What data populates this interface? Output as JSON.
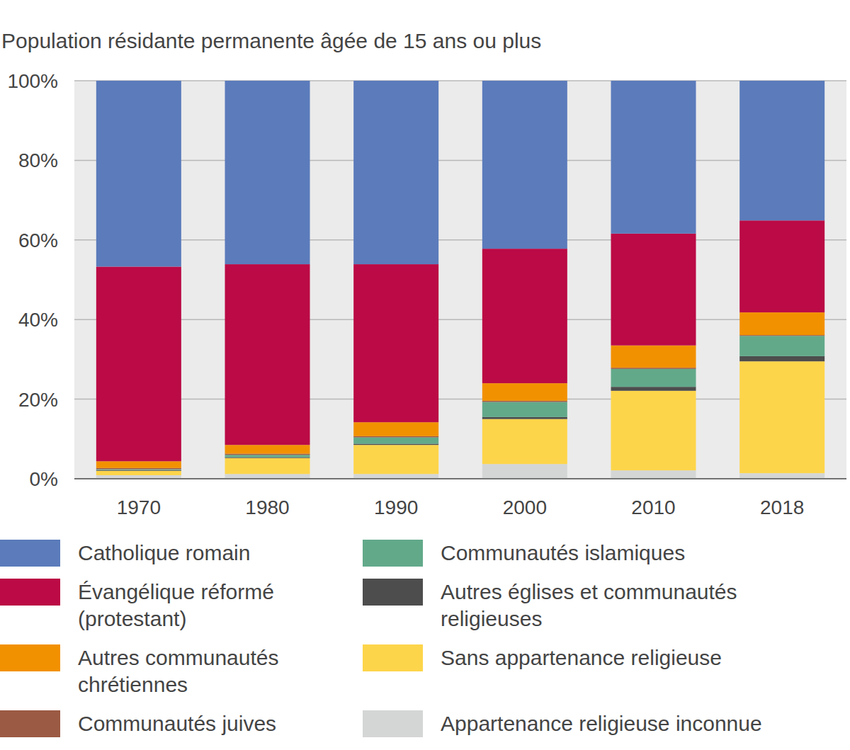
{
  "chart_data": {
    "type": "bar",
    "title": "Population résidante permanente âgée de 15 ans ou plus",
    "categories": [
      "1970",
      "1980",
      "1990",
      "2000",
      "2010",
      "2018"
    ],
    "stacked": true,
    "grid": true,
    "legend": "bottom",
    "ylim": [
      0,
      100
    ],
    "yticks": [
      {
        "value": 0,
        "label": "0%"
      },
      {
        "value": 20,
        "label": "20%"
      },
      {
        "value": 40,
        "label": "40%"
      },
      {
        "value": 60,
        "label": "60%"
      },
      {
        "value": 80,
        "label": "80%"
      },
      {
        "value": 100,
        "label": "100%"
      }
    ],
    "series": [
      {
        "name": "Catholique romain",
        "color": "#5b7bbb",
        "values": [
          46.7,
          46.1,
          46.1,
          42.2,
          38.4,
          35.1
        ]
      },
      {
        "name": "Évangélique réformé (protestant)",
        "color": "#bb0a45",
        "values": [
          48.9,
          45.4,
          39.7,
          33.8,
          28.1,
          23.1
        ]
      },
      {
        "name": "Autres communautés chrétiennes",
        "color": "#f29100",
        "values": [
          1.7,
          2.2,
          3.5,
          4.4,
          5.6,
          5.7
        ]
      },
      {
        "name": "Communautés juives",
        "color": "#9b5a43",
        "values": [
          0.3,
          0.3,
          0.3,
          0.3,
          0.3,
          0.2
        ]
      },
      {
        "name": "Communautés islamiques",
        "color": "#62a98a",
        "values": [
          0.2,
          0.6,
          1.6,
          3.8,
          4.5,
          5.1
        ]
      },
      {
        "name": "Autres églises et communautés religieuses",
        "color": "#4d4d4d",
        "values": [
          0.2,
          0.2,
          0.3,
          0.5,
          1.0,
          1.3
        ]
      },
      {
        "name": "Sans appartenance religieuse",
        "color": "#fdd54a",
        "values": [
          1.1,
          4.0,
          7.3,
          11.3,
          20.0,
          28.1
        ]
      },
      {
        "name": "Appartenance religieuse inconnue",
        "color": "#d4d6d6",
        "values": [
          0.9,
          1.2,
          1.2,
          3.7,
          2.1,
          1.4
        ]
      }
    ]
  }
}
